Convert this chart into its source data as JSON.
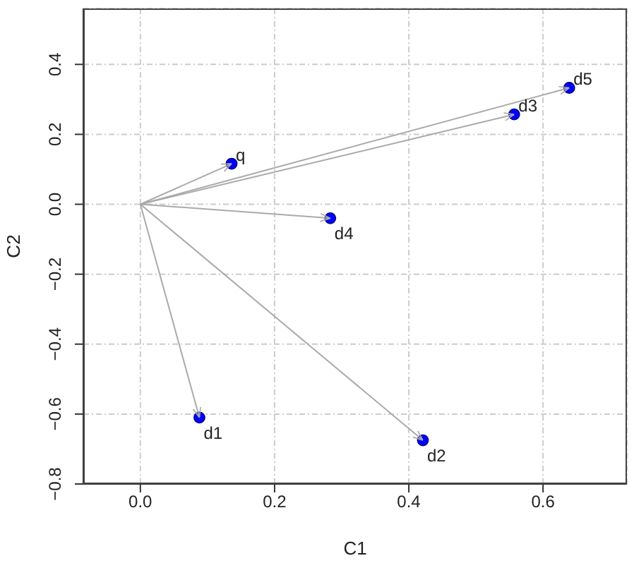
{
  "chart_data": {
    "type": "scatter",
    "xlabel": "C1",
    "ylabel": "C2",
    "x": [
      0.088,
      0.421,
      0.557,
      0.283,
      0.639,
      0.136
    ],
    "values": [
      -0.61,
      -0.675,
      0.257,
      -0.04,
      0.333,
      0.116
    ],
    "color": "#0000ff",
    "marker": "circle",
    "grid": true,
    "xlim": [
      -0.085,
      0.725
    ],
    "xticks": [
      {
        "value": 0,
        "label": "0.0"
      },
      0.2,
      0.4,
      0.6
    ],
    "ylim": [
      -0.8,
      0.56
    ],
    "yticks": [
      -0.8,
      -0.6,
      -0.4,
      -0.2,
      {
        "value": 0,
        "label": "0.0"
      },
      0.2,
      0.4
    ],
    "annotations": [
      {
        "text": "d1",
        "x": 0.088,
        "y": -0.61
      },
      {
        "text": "d2",
        "x": 0.421,
        "y": -0.675
      },
      {
        "text": "d3",
        "x": 0.557,
        "y": 0.257
      },
      {
        "text": "d4",
        "x": 0.283,
        "y": -0.04
      },
      {
        "text": "d5",
        "x": 0.639,
        "y": 0.333
      },
      {
        "text": "q",
        "x": 0.136,
        "y": 0.116
      }
    ]
  }
}
